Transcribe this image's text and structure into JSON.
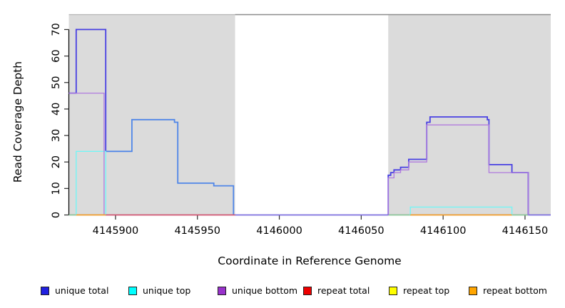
{
  "chart_data": {
    "type": "step-line",
    "xlabel": "Coordinate in Reference Genome",
    "ylabel": "Read Coverage Depth",
    "axes": {
      "x_range": [
        4145871.5,
        4146165.7
      ],
      "y_range": [
        0,
        75.5
      ],
      "x_ticks": [
        4145900,
        4145950,
        4146000,
        4146050,
        4146100,
        4146150
      ],
      "y_ticks": [
        0,
        10,
        20,
        30,
        40,
        50,
        60,
        70
      ],
      "axis_color": "#000000",
      "tick_color": "#2b2b2b"
    },
    "shaded_regions": [
      {
        "x0": 4145871.5,
        "x1": 4145973.0,
        "fill": "#DBDBDB"
      },
      {
        "x0": 4146066.5,
        "x1": 4146165.7,
        "fill": "#DBDBDB"
      }
    ],
    "top_border": {
      "left_color": "#B5B5B5",
      "right_color": "#8C8C8C",
      "split_x": 4145973
    },
    "series": [
      {
        "name": "unique total",
        "legend_color": "#2020E0",
        "segments": [
          {
            "color": "#4840E2",
            "width": 1.8,
            "points": [
              [
                4145871.5,
                46
              ],
              [
                4145876,
                46
              ],
              [
                4145876,
                70
              ],
              [
                4145894,
                70
              ],
              [
                4145894,
                24
              ]
            ]
          },
          {
            "color": "#4F86E8",
            "width": 1.8,
            "points": [
              [
                4145894,
                24
              ],
              [
                4145910,
                24
              ],
              [
                4145910,
                36
              ],
              [
                4145936,
                36
              ],
              [
                4145936,
                35
              ],
              [
                4145938,
                35
              ],
              [
                4145938,
                12
              ],
              [
                4145960,
                12
              ],
              [
                4145960,
                11
              ],
              [
                4145972,
                11
              ],
              [
                4145972,
                0
              ]
            ]
          },
          {
            "color": "#4840E2",
            "width": 1.8,
            "points": [
              [
                4146066.5,
                0
              ],
              [
                4146066.5,
                15
              ],
              [
                4146068,
                15
              ],
              [
                4146068,
                16
              ],
              [
                4146070,
                16
              ],
              [
                4146070,
                17
              ],
              [
                4146074,
                17
              ],
              [
                4146074,
                18
              ],
              [
                4146079,
                18
              ],
              [
                4146079,
                21
              ],
              [
                4146090,
                21
              ],
              [
                4146090,
                35
              ],
              [
                4146092,
                35
              ],
              [
                4146092,
                37
              ],
              [
                4146127,
                37
              ],
              [
                4146127,
                36
              ],
              [
                4146128,
                36
              ],
              [
                4146128,
                19
              ],
              [
                4146142,
                19
              ],
              [
                4146142,
                16
              ],
              [
                4146152,
                16
              ],
              [
                4146152,
                0
              ]
            ]
          }
        ]
      },
      {
        "name": "unique top",
        "legend_color": "#00FFFF",
        "segments": [
          {
            "color": "#74F6F6",
            "width": 1.4,
            "points": [
              [
                4145876,
                0
              ],
              [
                4145876,
                24
              ],
              [
                4145894,
                24
              ],
              [
                4145894,
                0
              ]
            ]
          },
          {
            "color": "#74F6F6",
            "width": 1.4,
            "points": [
              [
                4146080,
                0
              ],
              [
                4146080,
                3
              ],
              [
                4146142,
                3
              ],
              [
                4146142,
                0
              ]
            ]
          }
        ]
      },
      {
        "name": "unique bottom",
        "legend_color": "#9932CC",
        "segments": [
          {
            "color": "#B07BDE",
            "width": 1.3,
            "points": [
              [
                4145871.5,
                46
              ],
              [
                4145893,
                46
              ],
              [
                4145893,
                0
              ]
            ]
          },
          {
            "color": "#B07BDE",
            "width": 1.3,
            "points": [
              [
                4146066.5,
                0
              ],
              [
                4146066.5,
                14
              ],
              [
                4146070,
                14
              ],
              [
                4146070,
                16
              ],
              [
                4146074,
                16
              ],
              [
                4146074,
                17
              ],
              [
                4146079,
                17
              ],
              [
                4146079,
                20
              ],
              [
                4146090,
                20
              ],
              [
                4146090,
                34
              ],
              [
                4146128,
                34
              ],
              [
                4146128,
                16
              ],
              [
                4146152,
                16
              ],
              [
                4146152,
                0
              ]
            ]
          }
        ]
      },
      {
        "name": "repeat total",
        "legend_color": "#EE0000",
        "segments": [
          {
            "color": "#DC5070",
            "width": 1.4,
            "points": [
              [
                4145894,
                0
              ],
              [
                4145973,
                0
              ]
            ]
          }
        ]
      },
      {
        "name": "repeat top",
        "legend_color": "#FFFF00",
        "segments": []
      },
      {
        "name": "repeat bottom",
        "legend_color": "#FFA500",
        "segments": [
          {
            "color": "#FFA01E",
            "width": 1.6,
            "points": [
              [
                4145876,
                0
              ],
              [
                4145894,
                0
              ]
            ]
          },
          {
            "color": "#FFA01E",
            "width": 1.6,
            "points": [
              [
                4146080,
                0
              ],
              [
                4146142,
                0
              ]
            ]
          }
        ]
      }
    ],
    "baseline_blend_segments": [
      {
        "color": "#8BCF9C",
        "width": 1.4,
        "x0": 4145871.5,
        "x1": 4145876
      },
      {
        "color": "#7C6CEA",
        "width": 1.5,
        "x0": 4145973,
        "x1": 4146066.5
      },
      {
        "color": "#8BCF9C",
        "width": 1.4,
        "x0": 4146066.5,
        "x1": 4146080
      },
      {
        "color": "#8BCF9C",
        "width": 1.4,
        "x0": 4146142,
        "x1": 4146152
      },
      {
        "color": "#7C6CEA",
        "width": 1.5,
        "x0": 4146152,
        "x1": 4146165.7
      }
    ]
  },
  "legend": {
    "items": [
      {
        "label": "unique total",
        "color": "#2020E0"
      },
      {
        "label": "unique top",
        "color": "#00FFFF"
      },
      {
        "label": "unique bottom",
        "color": "#9932CC"
      },
      {
        "label": "repeat total",
        "color": "#EE0000"
      },
      {
        "label": "repeat top",
        "color": "#FFFF00"
      },
      {
        "label": "repeat bottom",
        "color": "#FFA500"
      }
    ]
  }
}
